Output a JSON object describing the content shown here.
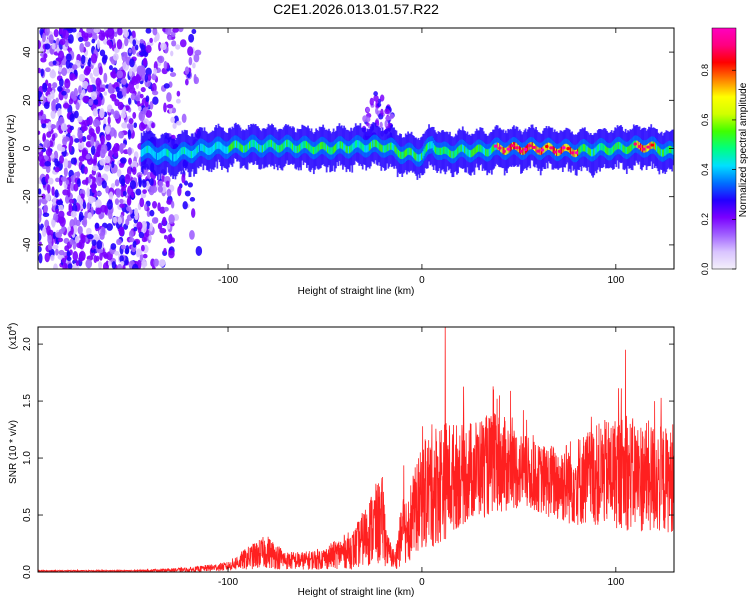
{
  "page_title": "C2E1.2026.013.01.57.R22",
  "colors": {
    "snr_line": "#ff2020",
    "axis": "#000000",
    "background": "#ffffff",
    "colormap": [
      "#f4f0fa",
      "#d9c4ff",
      "#a060ff",
      "#7a00ff",
      "#2200ff",
      "#0070ff",
      "#00e0ff",
      "#00ff80",
      "#40ff00",
      "#d0ff00",
      "#ffff00",
      "#ff8000",
      "#ff0000",
      "#ff0080",
      "#ff00c0"
    ]
  },
  "chart_data": [
    {
      "type": "heatmap",
      "name": "spectrogram",
      "title": "C2E1.2026.013.01.57.R22",
      "xlabel": "Height of straight line (km)",
      "ylabel": "Frequency (Hz)",
      "xlim": [
        -198,
        130
      ],
      "ylim": [
        -50,
        50
      ],
      "xticks": [
        -100,
        0,
        100
      ],
      "yticks": [
        40,
        20,
        0,
        -20,
        -40
      ],
      "xtick_labels": [
        "-100",
        "0",
        "100"
      ],
      "ytick_labels": [
        "40",
        "20",
        "0",
        "-20",
        "-40"
      ],
      "noise_region_x": [
        -198,
        -115
      ],
      "signal_band_center_hz": [
        [
          -145,
          -1
        ],
        [
          -130,
          -3
        ],
        [
          -110,
          0
        ],
        [
          -90,
          1
        ],
        [
          -70,
          1
        ],
        [
          -50,
          0
        ],
        [
          -30,
          1
        ],
        [
          -20,
          1
        ],
        [
          -10,
          -2
        ],
        [
          0,
          -3
        ],
        [
          5,
          2
        ],
        [
          10,
          -2
        ],
        [
          20,
          -1
        ],
        [
          30,
          -1
        ],
        [
          40,
          0
        ],
        [
          60,
          0
        ],
        [
          80,
          -1
        ],
        [
          100,
          0
        ],
        [
          115,
          1
        ],
        [
          130,
          -2
        ]
      ],
      "signal_band_halfwidth_hz": 6,
      "upper_excursion": {
        "x": [
          -30,
          -15
        ],
        "freq_max_hz": 25
      },
      "strong_amplitude_segments_x": [
        [
          38,
          80
        ],
        [
          110,
          120
        ]
      ],
      "colorbar": {
        "label": "Normalized spectral amplitude",
        "range": [
          0.0,
          0.97
        ],
        "ticks": [
          0.0,
          0.2,
          0.4,
          0.6,
          0.8
        ],
        "tick_labels": [
          "0.0",
          "0.2",
          "0.4",
          "0.6",
          "0.8"
        ]
      }
    },
    {
      "type": "line",
      "name": "snr",
      "xlabel": "Height of straight line (km)",
      "ylabel": "SNR (10 * v/v)",
      "y_multiplier_label": "(x10",
      "y_multiplier_exponent": "4",
      "y_multiplier_close": ")",
      "xlim": [
        -198,
        130
      ],
      "ylim": [
        0,
        2.15
      ],
      "xticks": [
        -100,
        0,
        100
      ],
      "yticks": [
        0.0,
        0.5,
        1.0,
        1.5,
        2.0
      ],
      "xtick_labels": [
        "-100",
        "0",
        "100"
      ],
      "ytick_labels": [
        "0.0",
        "0.5",
        "1.0",
        "1.5",
        "2.0"
      ],
      "envelope": {
        "x": [
          -198,
          -150,
          -120,
          -100,
          -90,
          -80,
          -70,
          -60,
          -50,
          -40,
          -35,
          -30,
          -25,
          -20,
          -18,
          -14,
          -10,
          -6,
          0,
          5,
          10,
          20,
          30,
          40,
          50,
          60,
          70,
          80,
          90,
          100,
          110,
          120,
          130
        ],
        "mean": [
          0.01,
          0.01,
          0.02,
          0.05,
          0.12,
          0.18,
          0.1,
          0.1,
          0.12,
          0.18,
          0.2,
          0.3,
          0.4,
          0.45,
          0.2,
          0.1,
          0.35,
          0.45,
          0.65,
          0.75,
          0.8,
          0.85,
          0.92,
          0.95,
          0.9,
          0.82,
          0.78,
          0.8,
          0.85,
          0.88,
          0.85,
          0.82,
          0.8
        ],
        "amp": [
          0.005,
          0.005,
          0.02,
          0.04,
          0.1,
          0.15,
          0.08,
          0.08,
          0.1,
          0.15,
          0.18,
          0.25,
          0.35,
          0.4,
          0.15,
          0.08,
          0.3,
          0.35,
          0.45,
          0.55,
          0.55,
          0.45,
          0.45,
          0.45,
          0.35,
          0.3,
          0.35,
          0.4,
          0.45,
          0.5,
          0.5,
          0.5,
          0.45
        ]
      },
      "peaks": [
        [
          12,
          2.2
        ],
        [
          40,
          1.55
        ],
        [
          105,
          1.95
        ],
        [
          120,
          1.5
        ]
      ]
    }
  ]
}
